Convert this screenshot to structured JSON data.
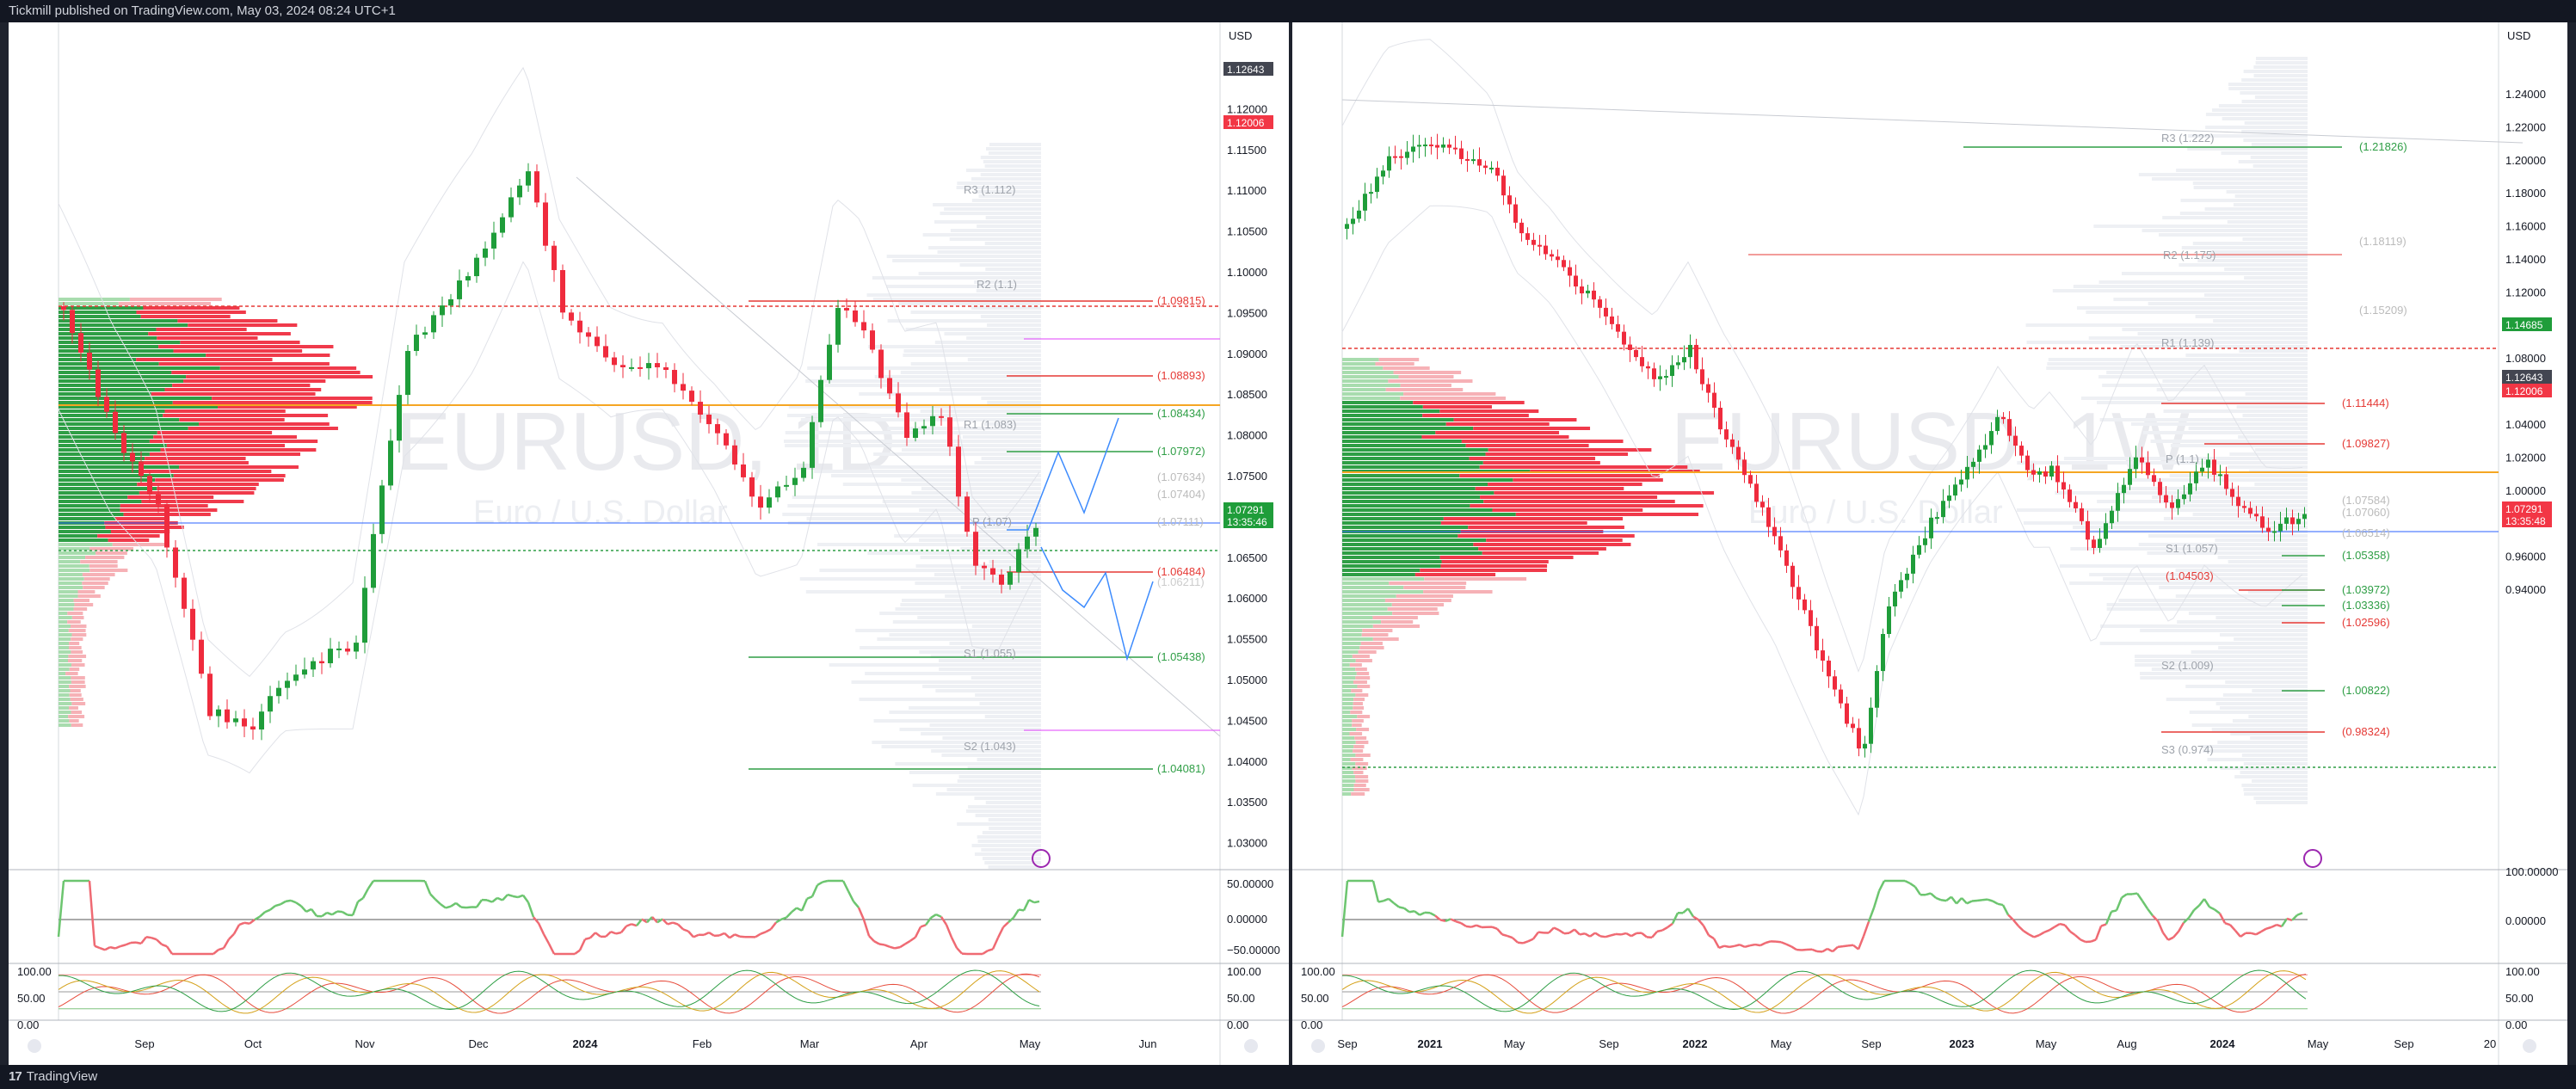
{
  "header": {
    "published": "Tickmill published on TradingView.com, May 03, 2024 08:24 UTC+1"
  },
  "footer": {
    "brand": "TradingView",
    "brand_icon": "tradingview-logo-icon"
  },
  "colors": {
    "up": "#22a03a",
    "down": "#f23645",
    "pivot_gray": "#9aa0a6",
    "orange": "#f5a623",
    "magenta": "#e040fb",
    "blue": "#2962ff"
  },
  "left_chart": {
    "currency": "USD",
    "watermark": "EURUSD, 1D",
    "sub_watermark": "Euro / U.S. Dollar",
    "x_labels": [
      "Sep",
      "Oct",
      "Nov",
      "Dec",
      "2024",
      "Feb",
      "Mar",
      "Apr",
      "May",
      "Jun"
    ],
    "price_labels": [
      "1.12500",
      "1.12000",
      "1.11500",
      "1.11000",
      "1.10500",
      "1.10000",
      "1.09500",
      "1.09000",
      "1.08500",
      "1.08000",
      "1.07500",
      "1.07000",
      "1.06500",
      "1.06000",
      "1.05500",
      "1.05000",
      "1.04500",
      "1.04000",
      "1.03500",
      "1.03000"
    ],
    "tags": {
      "dark": "1.12643",
      "red": "1.12006",
      "green_price": "1.07291",
      "green_time": "13:35:46"
    },
    "pivots": [
      "R3 (1.112)",
      "R2 (1.1)",
      "R1 (1.083)",
      "P (1.07)",
      "S1 (1.055)",
      "S2 (1.043)"
    ],
    "levels": [
      "(1.09815)",
      "(1.08893)",
      "(1.08434)",
      "(1.07972)",
      "(1.07634)",
      "(1.07404)",
      "(1.07111)",
      "(1.06484)",
      "(1.06211)",
      "(1.05438)",
      "(1.04081)"
    ],
    "osc_labels": [
      "50.00000",
      "0.00000",
      "−50.00000"
    ],
    "stoch_labels": [
      "100.00",
      "50.00",
      "0.00"
    ]
  },
  "right_chart": {
    "currency": "USD",
    "watermark": "EURUSD, 1W",
    "sub_watermark": "Euro / U.S. Dollar",
    "x_labels": [
      "Sep",
      "2021",
      "May",
      "Sep",
      "2022",
      "May",
      "Sep",
      "2023",
      "May",
      "Aug",
      "2024",
      "May",
      "Sep",
      "20"
    ],
    "price_labels": [
      "1.24000",
      "1.22000",
      "1.20000",
      "1.18000",
      "1.16000",
      "1.14000",
      "1.12000",
      "1.10000",
      "1.08000",
      "1.06000",
      "1.04000",
      "1.02000",
      "1.00000",
      "0.98000",
      "0.96000",
      "0.94000"
    ],
    "tags": {
      "green": "1.14685",
      "dark": "1.12643",
      "red": "1.12006",
      "red_price": "1.07291",
      "red_time": "13:35:48"
    },
    "pivots": [
      "R3 (1.222)",
      "R2 (1.175)",
      "R1 (1.139)",
      "P (1.1)",
      "S1 (1.057)",
      "S2 (1.009)",
      "S3 (0.974)"
    ],
    "levels": [
      "(1.21826)",
      "(1.18119)",
      "(1.15209)",
      "(1.11444)",
      "(1.09827)",
      "(1.07584)",
      "(1.07060)",
      "(1.06514)",
      "(1.05358)",
      "(1.04503)",
      "(1.03972)",
      "(1.03336)",
      "(1.02596)",
      "(1.00822)",
      "(0.98324)"
    ],
    "osc_labels": [
      "100.00000",
      "0.00000"
    ],
    "stoch_labels": [
      "100.00",
      "50.00",
      "0.00"
    ]
  }
}
